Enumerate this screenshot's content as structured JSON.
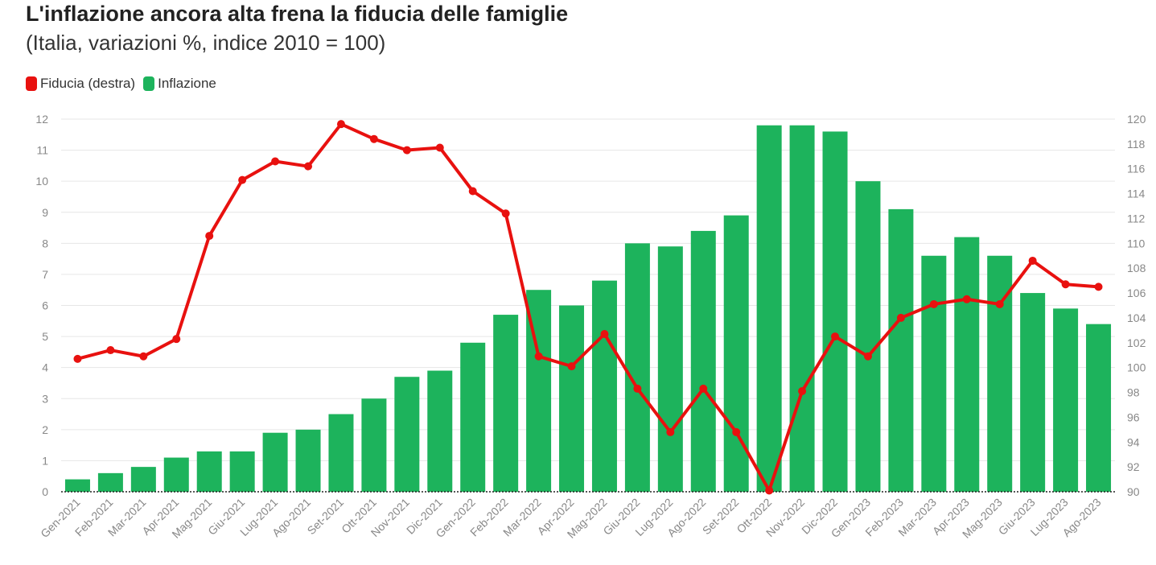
{
  "title": "L'inflazione ancora alta frena la fiducia delle famiglie",
  "subtitle": "(Italia, variazioni %, indice 2010 = 100)",
  "chart_data": {
    "type": "bar",
    "categories": [
      "Gen-2021",
      "Feb-2021",
      "Mar-2021",
      "Apr-2021",
      "Mag-2021",
      "Giu-2021",
      "Lug-2021",
      "Ago-2021",
      "Set-2021",
      "Ott-2021",
      "Nov-2021",
      "Dic-2021",
      "Gen-2022",
      "Feb-2022",
      "Mar-2022",
      "Apr-2022",
      "Mag-2022",
      "Giu-2022",
      "Lug-2022",
      "Ago-2022",
      "Set-2022",
      "Ott-2022",
      "Nov-2022",
      "Dic-2022",
      "Gen-2023",
      "Feb-2023",
      "Mar-2023",
      "Apr-2023",
      "Mag-2023",
      "Giu-2023",
      "Lug-2023",
      "Ago-2023"
    ],
    "series": [
      {
        "name": "Inflazione",
        "type": "bar",
        "axis": "left",
        "color": "#1db35c",
        "values": [
          0.4,
          0.6,
          0.8,
          1.1,
          1.3,
          1.3,
          1.9,
          2.0,
          2.5,
          3.0,
          3.7,
          3.9,
          4.8,
          5.7,
          6.5,
          6.0,
          6.8,
          8.0,
          7.9,
          8.4,
          8.9,
          11.8,
          11.8,
          11.6,
          10.0,
          9.1,
          7.6,
          8.2,
          7.6,
          6.4,
          5.9,
          5.4
        ]
      },
      {
        "name": "Fiducia (destra)",
        "type": "line",
        "axis": "right",
        "color": "#e8110f",
        "values": [
          100.7,
          101.4,
          100.9,
          102.3,
          110.6,
          115.1,
          116.6,
          116.2,
          119.6,
          118.4,
          117.5,
          117.7,
          114.2,
          112.4,
          100.9,
          100.1,
          102.7,
          98.3,
          94.8,
          98.3,
          94.8,
          90.1,
          98.1,
          102.5,
          100.9,
          104.0,
          105.1,
          105.5,
          105.1,
          108.6,
          106.7,
          106.5
        ]
      }
    ],
    "ylim_left": [
      0,
      12
    ],
    "ylim_right": [
      90,
      120
    ],
    "yticks_left": [
      0,
      1,
      2,
      3,
      4,
      5,
      6,
      7,
      8,
      9,
      10,
      11,
      12
    ],
    "yticks_right": [
      90,
      92,
      94,
      96,
      98,
      100,
      102,
      104,
      106,
      108,
      110,
      112,
      114,
      116,
      118,
      120
    ],
    "grid": true,
    "legend_position": "top-left"
  }
}
